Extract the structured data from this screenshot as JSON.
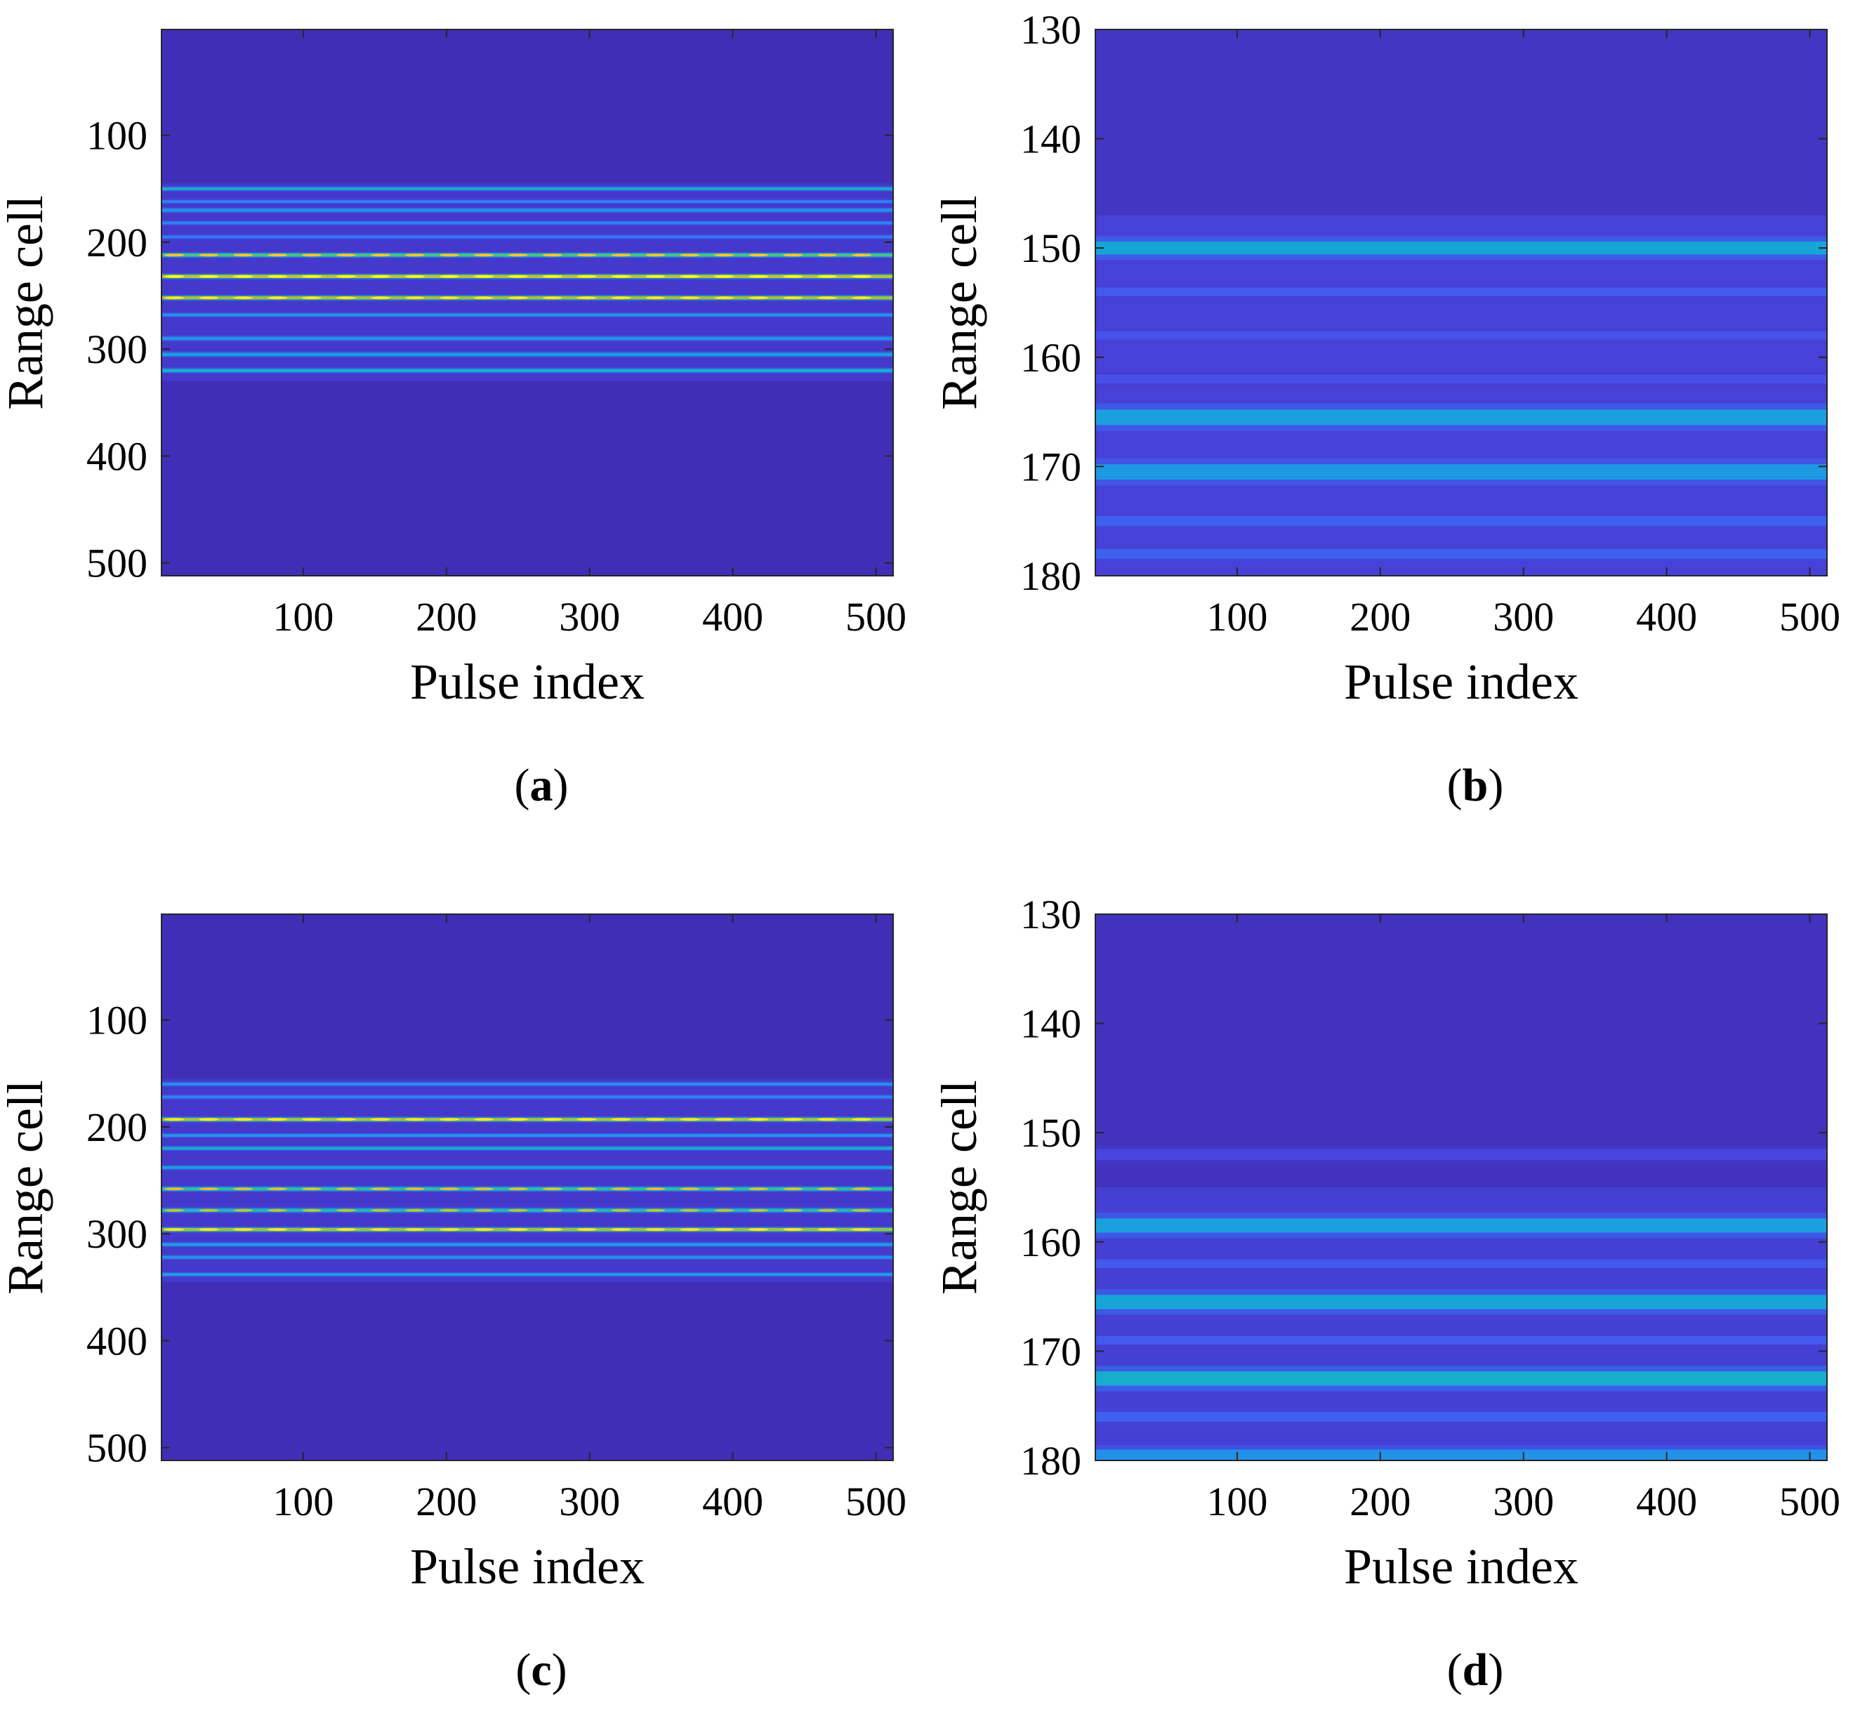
{
  "chart_data": [
    {
      "type": "heatmap",
      "panel": "a",
      "caption": "(a)",
      "caption_letter": "a",
      "xlabel": "Pulse index",
      "ylabel": "Range cell",
      "xlim": [
        1,
        512
      ],
      "ylim": [
        1,
        512
      ],
      "y_reversed": true,
      "xticks": [
        100,
        200,
        300,
        400,
        500
      ],
      "yticks": [
        100,
        200,
        300,
        400,
        500
      ],
      "colormap": [
        "#3e26a8",
        "#4a4ce9",
        "#2f7ef8",
        "#15a8d6",
        "#2bc29c",
        "#a6c437",
        "#f5c82f",
        "#f9fb15"
      ],
      "background_level": 0.03,
      "bands": [
        {
          "range_cell": 150,
          "intensity": 0.45,
          "width": 2.5
        },
        {
          "range_cell": 162,
          "intensity": 0.3,
          "width": 2.5
        },
        {
          "range_cell": 170,
          "intensity": 0.35,
          "width": 3
        },
        {
          "range_cell": 182,
          "intensity": 0.3,
          "width": 2.5
        },
        {
          "range_cell": 195,
          "intensity": 0.28,
          "width": 2.5
        },
        {
          "range_cell": 212,
          "intensity": 0.6,
          "width": 3,
          "dashed": true
        },
        {
          "range_cell": 232,
          "intensity": 0.75,
          "width": 3,
          "dashed": true
        },
        {
          "range_cell": 252,
          "intensity": 0.7,
          "width": 3,
          "dashed": true
        },
        {
          "range_cell": 268,
          "intensity": 0.35,
          "width": 2.5
        },
        {
          "range_cell": 290,
          "intensity": 0.35,
          "width": 3
        },
        {
          "range_cell": 305,
          "intensity": 0.4,
          "width": 3
        },
        {
          "range_cell": 320,
          "intensity": 0.45,
          "width": 3
        }
      ],
      "target_extent": [
        145,
        330
      ]
    },
    {
      "type": "heatmap",
      "panel": "b",
      "caption": "(b)",
      "caption_letter": "b",
      "xlabel": "Pulse index",
      "ylabel": "Range cell",
      "xlim": [
        1,
        512
      ],
      "ylim": [
        130,
        180
      ],
      "y_reversed": true,
      "xticks": [
        100,
        200,
        300,
        400,
        500
      ],
      "yticks": [
        130,
        140,
        150,
        160,
        170,
        180
      ],
      "colormap": [
        "#3e26a8",
        "#4a4ce9",
        "#2f7ef8",
        "#15a8d6",
        "#2bc29c",
        "#a6c437",
        "#f5c82f",
        "#f9fb15"
      ],
      "background_level": 0.06,
      "bands": [
        {
          "range_cell": 150,
          "intensity": 0.42,
          "width": 1.2
        },
        {
          "range_cell": 154,
          "intensity": 0.18,
          "width": 0.8
        },
        {
          "range_cell": 158,
          "intensity": 0.16,
          "width": 0.8
        },
        {
          "range_cell": 162,
          "intensity": 0.15,
          "width": 0.8
        },
        {
          "range_cell": 165.5,
          "intensity": 0.4,
          "width": 1.4
        },
        {
          "range_cell": 170.5,
          "intensity": 0.38,
          "width": 1.4
        },
        {
          "range_cell": 175,
          "intensity": 0.2,
          "width": 0.9
        },
        {
          "range_cell": 178,
          "intensity": 0.2,
          "width": 0.9
        }
      ],
      "target_extent": [
        147,
        180
      ]
    },
    {
      "type": "heatmap",
      "panel": "c",
      "caption": "(c)",
      "caption_letter": "c",
      "xlabel": "Pulse index",
      "ylabel": "Range cell",
      "xlim": [
        1,
        512
      ],
      "ylim": [
        1,
        512
      ],
      "y_reversed": true,
      "xticks": [
        100,
        200,
        300,
        400,
        500
      ],
      "yticks": [
        100,
        200,
        300,
        400,
        500
      ],
      "colormap": [
        "#3e26a8",
        "#4a4ce9",
        "#2f7ef8",
        "#15a8d6",
        "#2bc29c",
        "#a6c437",
        "#f5c82f",
        "#f9fb15"
      ],
      "background_level": 0.03,
      "bands": [
        {
          "range_cell": 160,
          "intensity": 0.35,
          "width": 2.5
        },
        {
          "range_cell": 172,
          "intensity": 0.3,
          "width": 2.5
        },
        {
          "range_cell": 193,
          "intensity": 0.7,
          "width": 3,
          "dashed": true
        },
        {
          "range_cell": 208,
          "intensity": 0.35,
          "width": 2.5
        },
        {
          "range_cell": 220,
          "intensity": 0.45,
          "width": 2.5
        },
        {
          "range_cell": 238,
          "intensity": 0.4,
          "width": 2.5
        },
        {
          "range_cell": 258,
          "intensity": 0.55,
          "width": 3,
          "dashed": true
        },
        {
          "range_cell": 278,
          "intensity": 0.5,
          "width": 3,
          "dashed": true
        },
        {
          "range_cell": 296,
          "intensity": 0.7,
          "width": 3,
          "dashed": true
        },
        {
          "range_cell": 310,
          "intensity": 0.4,
          "width": 2.5
        },
        {
          "range_cell": 322,
          "intensity": 0.35,
          "width": 2.5
        },
        {
          "range_cell": 338,
          "intensity": 0.38,
          "width": 2.5
        }
      ],
      "target_extent": [
        155,
        345
      ]
    },
    {
      "type": "heatmap",
      "panel": "d",
      "caption": "(d)",
      "caption_letter": "d",
      "xlabel": "Pulse index",
      "ylabel": "Range cell",
      "xlim": [
        1,
        512
      ],
      "ylim": [
        130,
        180
      ],
      "y_reversed": true,
      "xticks": [
        100,
        200,
        300,
        400,
        500
      ],
      "yticks": [
        130,
        140,
        150,
        160,
        170,
        180
      ],
      "colormap": [
        "#3e26a8",
        "#4a4ce9",
        "#2f7ef8",
        "#15a8d6",
        "#2bc29c",
        "#a6c437",
        "#f5c82f",
        "#f9fb15"
      ],
      "background_level": 0.05,
      "bands": [
        {
          "range_cell": 152,
          "intensity": 0.12,
          "width": 1.0
        },
        {
          "range_cell": 158.5,
          "intensity": 0.4,
          "width": 1.3
        },
        {
          "range_cell": 162,
          "intensity": 0.18,
          "width": 0.8
        },
        {
          "range_cell": 165.5,
          "intensity": 0.42,
          "width": 1.3
        },
        {
          "range_cell": 169,
          "intensity": 0.18,
          "width": 0.8
        },
        {
          "range_cell": 172.5,
          "intensity": 0.45,
          "width": 1.3
        },
        {
          "range_cell": 176,
          "intensity": 0.2,
          "width": 0.9
        },
        {
          "range_cell": 179.5,
          "intensity": 0.35,
          "width": 1.0
        }
      ],
      "target_extent": [
        155,
        180
      ]
    }
  ]
}
